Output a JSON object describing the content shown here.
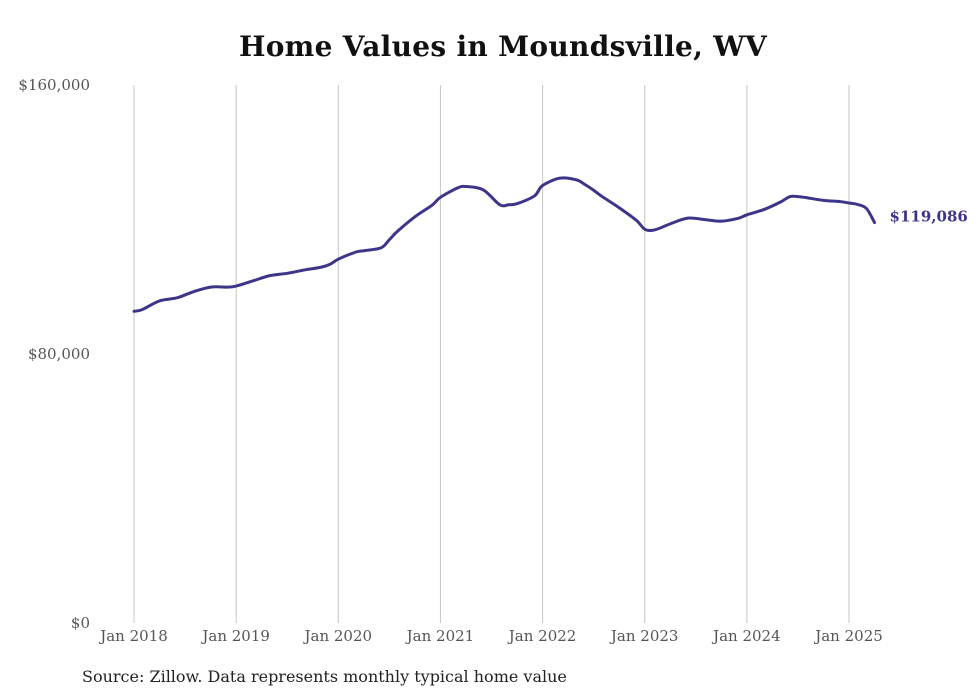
{
  "chart_data": {
    "type": "line",
    "title": "Home Values in Moundsville, WV",
    "xlabel": "",
    "ylabel": "",
    "ylim": [
      0,
      160000
    ],
    "y_ticks": [
      {
        "value": 0,
        "label": "$0"
      },
      {
        "value": 80000,
        "label": "$80,000"
      },
      {
        "value": 160000,
        "label": "$160,000"
      }
    ],
    "x_ticks": [
      {
        "value": 2018.0,
        "label": "Jan 2018"
      },
      {
        "value": 2019.0,
        "label": "Jan 2019"
      },
      {
        "value": 2020.0,
        "label": "Jan 2020"
      },
      {
        "value": 2021.0,
        "label": "Jan 2021"
      },
      {
        "value": 2022.0,
        "label": "Jan 2022"
      },
      {
        "value": 2023.0,
        "label": "Jan 2023"
      },
      {
        "value": 2024.0,
        "label": "Jan 2024"
      },
      {
        "value": 2025.0,
        "label": "Jan 2025"
      }
    ],
    "xlim": [
      2018.0,
      2025.0
    ],
    "grid": "vertical",
    "line_color": "#3d3589",
    "end_label": "$119,086",
    "series": [
      {
        "x": [
          2018.0,
          2018.08,
          2018.25,
          2018.42,
          2018.58,
          2018.75,
          2018.92,
          2019.0,
          2019.17,
          2019.33,
          2019.5,
          2019.67,
          2019.83,
          2019.92,
          2020.0,
          2020.17,
          2020.25,
          2020.42,
          2020.5,
          2020.58,
          2020.75,
          2020.92,
          2021.0,
          2021.17,
          2021.25,
          2021.42,
          2021.58,
          2021.67,
          2021.75,
          2021.92,
          2022.0,
          2022.17,
          2022.33,
          2022.42,
          2022.5,
          2022.58,
          2022.75,
          2022.92,
          2023.0,
          2023.08,
          2023.17,
          2023.25,
          2023.42,
          2023.58,
          2023.75,
          2023.92,
          2024.0,
          2024.17,
          2024.33,
          2024.42,
          2024.5,
          2024.58,
          2024.75,
          2024.92,
          2025.0,
          2025.08,
          2025.17,
          2025.25
        ],
        "y": [
          92700,
          93200,
          95800,
          96700,
          98500,
          99900,
          99900,
          100200,
          101800,
          103300,
          104000,
          105000,
          105800,
          106700,
          108200,
          110300,
          110700,
          111600,
          114000,
          116500,
          120800,
          124300,
          126600,
          129400,
          129800,
          128800,
          124400,
          124400,
          124700,
          127000,
          130100,
          132300,
          131800,
          130300,
          128700,
          126900,
          123500,
          119700,
          117100,
          116800,
          117700,
          118700,
          120400,
          120000,
          119500,
          120400,
          121400,
          123000,
          125200,
          126800,
          126800,
          126500,
          125700,
          125300,
          124900,
          124500,
          123300,
          119086
        ]
      }
    ]
  },
  "source_note": "Source: Zillow. Data represents monthly typical home value"
}
